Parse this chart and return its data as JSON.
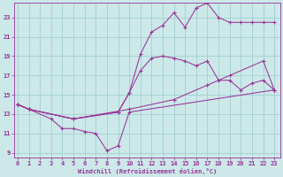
{
  "bg_color": "#cce8e8",
  "line_color": "#993399",
  "grid_color": "#99cccc",
  "xlabel": "Windchill (Refroidissement éolien,°C)",
  "ylabel_ticks": [
    9,
    11,
    13,
    15,
    17,
    19,
    21,
    23
  ],
  "xlabel_ticks": [
    0,
    1,
    2,
    3,
    4,
    5,
    6,
    7,
    8,
    9,
    10,
    11,
    12,
    13,
    14,
    15,
    16,
    17,
    18,
    19,
    20,
    21,
    22,
    23
  ],
  "xlim": [
    -0.3,
    23.5
  ],
  "ylim": [
    8.5,
    24.5
  ],
  "lines": [
    {
      "x": [
        0,
        1,
        3,
        4,
        5,
        6,
        7,
        8,
        9,
        10,
        23
      ],
      "y": [
        14.0,
        13.5,
        12.5,
        11.5,
        11.5,
        11.2,
        11.0,
        9.2,
        9.7,
        13.2,
        15.5
      ]
    },
    {
      "x": [
        0,
        1,
        5,
        10,
        14,
        17,
        19,
        22,
        23
      ],
      "y": [
        14.0,
        13.5,
        12.5,
        13.5,
        14.5,
        16.0,
        17.0,
        18.5,
        15.5
      ]
    },
    {
      "x": [
        0,
        1,
        5,
        9,
        10,
        11,
        12,
        13,
        14,
        15,
        16,
        17,
        18,
        19,
        20,
        21,
        22,
        23
      ],
      "y": [
        14.0,
        13.5,
        12.5,
        13.2,
        15.2,
        17.5,
        18.8,
        19.0,
        18.8,
        18.5,
        18.0,
        18.5,
        16.5,
        16.5,
        15.5,
        16.2,
        16.5,
        15.5
      ]
    },
    {
      "x": [
        0,
        1,
        5,
        9,
        10,
        11,
        12,
        13,
        14,
        15,
        16,
        17,
        18,
        19,
        20,
        21,
        22,
        23
      ],
      "y": [
        14.0,
        13.5,
        12.5,
        13.2,
        15.2,
        19.2,
        21.5,
        22.2,
        23.5,
        22.0,
        24.0,
        24.5,
        23.0,
        22.5,
        22.5,
        22.5,
        22.5,
        22.5
      ]
    }
  ]
}
